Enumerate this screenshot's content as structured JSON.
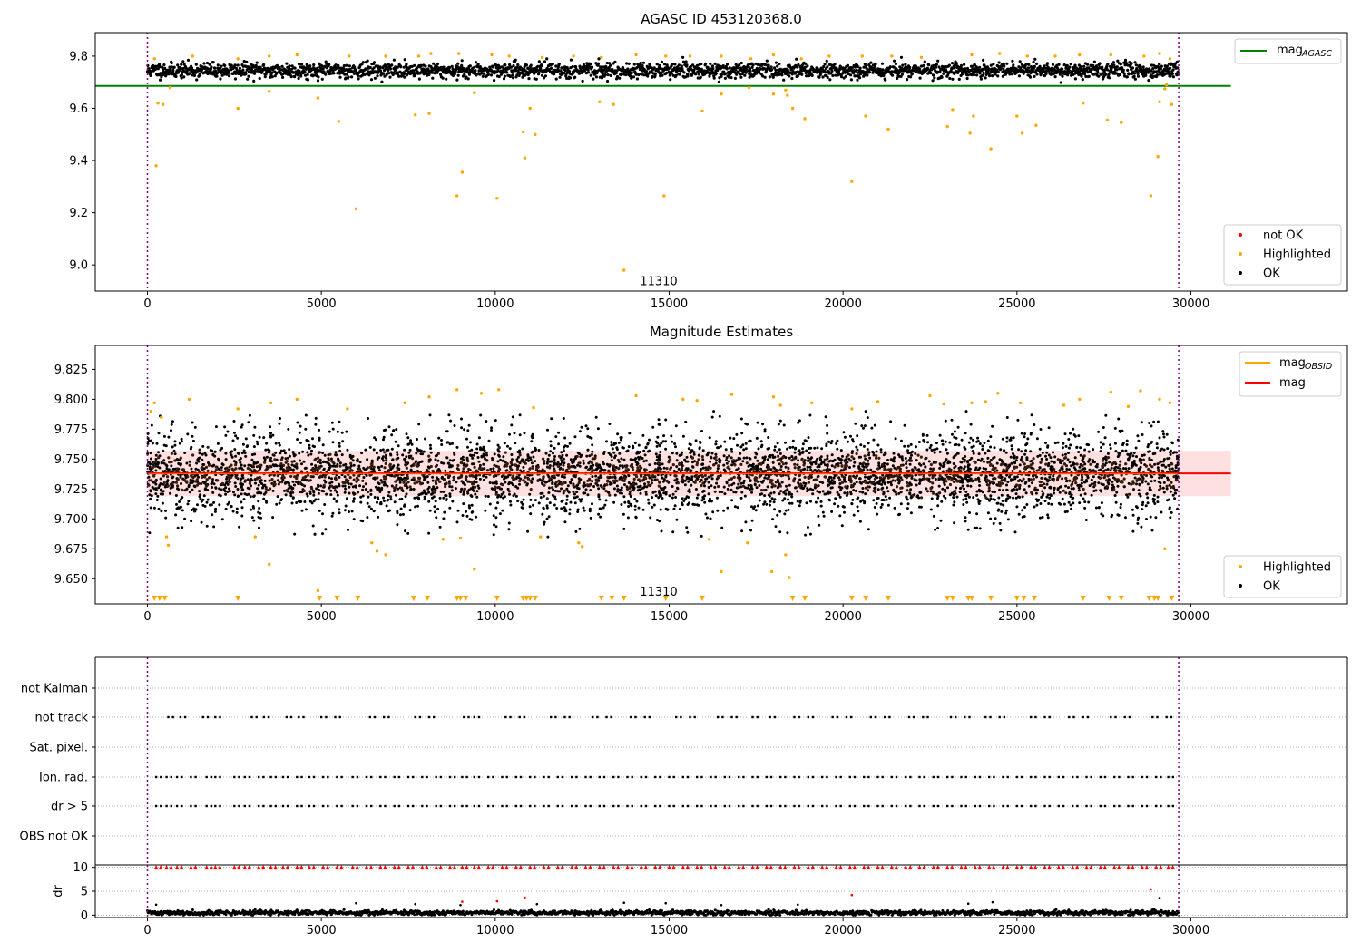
{
  "figure": {
    "title_top": "AGASC ID 453120368.0",
    "title_mid": "Magnitude Estimates"
  },
  "chart_data": [
    {
      "type": "scatter",
      "title": "AGASC ID 453120368.0",
      "xlim": [
        -1500,
        34500
      ],
      "ylim": [
        8.9,
        9.89
      ],
      "xticks": [
        0,
        5000,
        10000,
        15000,
        20000,
        25000,
        30000
      ],
      "yticks": [
        9.0,
        9.2,
        9.4,
        9.6,
        9.8
      ],
      "grid": false,
      "legend_upper": {
        "placement": "top-right",
        "entries": [
          {
            "label": "mag",
            "sub": "AGASC",
            "color": "#008000",
            "kind": "line"
          }
        ]
      },
      "legend_lower": {
        "placement": "bottom-right",
        "entries": [
          {
            "label": "not OK",
            "color": "#ff0000",
            "kind": "marker"
          },
          {
            "label": "Highlighted",
            "color": "#ffa500",
            "kind": "marker"
          },
          {
            "label": "OK",
            "color": "#000000",
            "kind": "marker"
          }
        ]
      },
      "annotation": {
        "text": "11310",
        "x": 14700,
        "y": 8.94
      },
      "vlines": [
        0,
        29650
      ],
      "mag_agasc": 9.686,
      "ok_band": {
        "x_range": [
          0,
          29650
        ],
        "center": 9.745,
        "spread": 0.032
      },
      "highlighted": [
        [
          250,
          9.38
        ],
        [
          300,
          9.62
        ],
        [
          450,
          9.615
        ],
        [
          650,
          9.68
        ],
        [
          2600,
          9.6
        ],
        [
          3500,
          9.665
        ],
        [
          4900,
          9.64
        ],
        [
          5500,
          9.55
        ],
        [
          6000,
          9.215
        ],
        [
          7700,
          9.575
        ],
        [
          8100,
          9.58
        ],
        [
          8900,
          9.265
        ],
        [
          9050,
          9.355
        ],
        [
          9400,
          9.66
        ],
        [
          10050,
          9.255
        ],
        [
          10800,
          9.51
        ],
        [
          10850,
          9.41
        ],
        [
          11000,
          9.6
        ],
        [
          11150,
          9.5
        ],
        [
          13000,
          9.625
        ],
        [
          13400,
          9.615
        ],
        [
          13700,
          8.98
        ],
        [
          14850,
          9.265
        ],
        [
          15950,
          9.59
        ],
        [
          16500,
          9.655
        ],
        [
          17300,
          9.68
        ],
        [
          18000,
          9.655
        ],
        [
          18350,
          9.67
        ],
        [
          18400,
          9.65
        ],
        [
          18550,
          9.6
        ],
        [
          18900,
          9.56
        ],
        [
          20250,
          9.32
        ],
        [
          20650,
          9.57
        ],
        [
          21300,
          9.52
        ],
        [
          23000,
          9.53
        ],
        [
          23150,
          9.595
        ],
        [
          23650,
          9.505
        ],
        [
          23750,
          9.57
        ],
        [
          24250,
          9.445
        ],
        [
          25000,
          9.57
        ],
        [
          25150,
          9.505
        ],
        [
          25550,
          9.535
        ],
        [
          26900,
          9.62
        ],
        [
          27600,
          9.555
        ],
        [
          28000,
          9.545
        ],
        [
          28850,
          9.265
        ],
        [
          29050,
          9.415
        ],
        [
          29100,
          9.625
        ],
        [
          29250,
          9.675
        ],
        [
          29300,
          9.69
        ],
        [
          29450,
          9.615
        ],
        [
          200,
          9.79
        ],
        [
          1300,
          9.8
        ],
        [
          2600,
          9.79
        ],
        [
          3500,
          9.8
        ],
        [
          4300,
          9.805
        ],
        [
          5800,
          9.8
        ],
        [
          6850,
          9.8
        ],
        [
          7800,
          9.8
        ],
        [
          8150,
          9.81
        ],
        [
          8950,
          9.81
        ],
        [
          9900,
          9.805
        ],
        [
          10400,
          9.8
        ],
        [
          11350,
          9.795
        ],
        [
          12250,
          9.8
        ],
        [
          13050,
          9.795
        ],
        [
          14050,
          9.805
        ],
        [
          14900,
          9.8
        ],
        [
          15600,
          9.8
        ],
        [
          16500,
          9.8
        ],
        [
          17350,
          9.79
        ],
        [
          18000,
          9.805
        ],
        [
          18800,
          9.79
        ],
        [
          19600,
          9.8
        ],
        [
          20550,
          9.8
        ],
        [
          21400,
          9.8
        ],
        [
          22250,
          9.795
        ],
        [
          23700,
          9.805
        ],
        [
          24500,
          9.81
        ],
        [
          25300,
          9.8
        ],
        [
          26100,
          9.8
        ],
        [
          26800,
          9.805
        ],
        [
          27700,
          9.805
        ],
        [
          28650,
          9.8
        ],
        [
          29100,
          9.81
        ],
        [
          29400,
          9.79
        ]
      ]
    },
    {
      "type": "scatter",
      "title": "Magnitude Estimates",
      "xlim": [
        -1500,
        34500
      ],
      "ylim": [
        9.629,
        9.845
      ],
      "xticks": [
        0,
        5000,
        10000,
        15000,
        20000,
        25000,
        30000
      ],
      "yticks": [
        9.65,
        9.675,
        9.7,
        9.725,
        9.75,
        9.775,
        9.8,
        9.825
      ],
      "grid": false,
      "legend_upper": {
        "placement": "top-right",
        "entries": [
          {
            "label": "mag",
            "sub": "OBSID",
            "color": "#ffa500",
            "kind": "line"
          },
          {
            "label": "mag",
            "sub": "",
            "color": "#ff0000",
            "kind": "line"
          }
        ]
      },
      "legend_lower": {
        "placement": "bottom-right",
        "entries": [
          {
            "label": "Highlighted",
            "color": "#ffa500",
            "kind": "marker"
          },
          {
            "label": "OK",
            "color": "#000000",
            "kind": "marker"
          }
        ]
      },
      "annotation": {
        "text": "11310",
        "x": 14700,
        "y": 9.637
      },
      "vlines": [
        0,
        29650
      ],
      "mag_line": 9.738,
      "mag_band": [
        9.719,
        9.757
      ],
      "mag_obsid": {
        "x_range": [
          0,
          29650
        ],
        "value": 9.738
      },
      "ok_band": {
        "x_range": [
          0,
          29650
        ],
        "center": 9.737,
        "spread": 0.048
      },
      "highlighted": [
        [
          100,
          9.79
        ],
        [
          200,
          9.797
        ],
        [
          400,
          9.785
        ],
        [
          550,
          9.685
        ],
        [
          600,
          9.678
        ],
        [
          1200,
          9.8
        ],
        [
          2600,
          9.792
        ],
        [
          3100,
          9.685
        ],
        [
          3500,
          9.662
        ],
        [
          3550,
          9.797
        ],
        [
          4300,
          9.8
        ],
        [
          4900,
          9.64
        ],
        [
          5750,
          9.792
        ],
        [
          6450,
          9.68
        ],
        [
          6600,
          9.673
        ],
        [
          6850,
          9.67
        ],
        [
          7400,
          9.797
        ],
        [
          8100,
          9.802
        ],
        [
          8500,
          9.683
        ],
        [
          8900,
          9.808
        ],
        [
          9000,
          9.684
        ],
        [
          9400,
          9.658
        ],
        [
          9600,
          9.805
        ],
        [
          10100,
          9.808
        ],
        [
          11100,
          9.793
        ],
        [
          11300,
          9.685
        ],
        [
          12400,
          9.68
        ],
        [
          12500,
          9.677
        ],
        [
          14050,
          9.803
        ],
        [
          15400,
          9.8
        ],
        [
          15800,
          9.799
        ],
        [
          16150,
          9.683
        ],
        [
          16500,
          9.656
        ],
        [
          16800,
          9.804
        ],
        [
          17250,
          9.68
        ],
        [
          17950,
          9.656
        ],
        [
          18000,
          9.802
        ],
        [
          18200,
          9.795
        ],
        [
          18350,
          9.67
        ],
        [
          18450,
          9.651
        ],
        [
          19100,
          9.797
        ],
        [
          20250,
          9.792
        ],
        [
          21000,
          9.798
        ],
        [
          22500,
          9.803
        ],
        [
          22900,
          9.796
        ],
        [
          23700,
          9.797
        ],
        [
          24100,
          9.798
        ],
        [
          24450,
          9.805
        ],
        [
          25100,
          9.797
        ],
        [
          26350,
          9.795
        ],
        [
          26800,
          9.8
        ],
        [
          27700,
          9.806
        ],
        [
          28200,
          9.794
        ],
        [
          28550,
          9.807
        ],
        [
          29100,
          9.8
        ],
        [
          29250,
          9.675
        ],
        [
          29400,
          9.797
        ]
      ],
      "highlighted_below_range_x": [
        200,
        350,
        500,
        2600,
        4950,
        5450,
        6050,
        7650,
        8050,
        8900,
        9000,
        9150,
        10050,
        10800,
        10900,
        11000,
        11150,
        13050,
        13350,
        13700,
        14900,
        15950,
        18550,
        18900,
        20250,
        20650,
        21300,
        23000,
        23150,
        23600,
        23700,
        24250,
        25000,
        25200,
        25500,
        26900,
        27650,
        28000,
        28800,
        28950,
        29050,
        29450
      ]
    },
    {
      "type": "scatter",
      "title": "",
      "xlim": [
        -1500,
        34500
      ],
      "xticks": [
        0,
        5000,
        10000,
        15000,
        20000,
        25000,
        30000
      ],
      "grid": true,
      "flag_categories": [
        "not Kalman",
        "not track",
        "Sat. pixel.",
        "Ion. rad.",
        "dr > 5",
        "OBS not OK"
      ],
      "flags": {
        "not Kalman": [],
        "not track": [
          600,
          950,
          1600,
          1950,
          3000,
          3350,
          4000,
          4350,
          5000,
          5400,
          6400,
          6800,
          7700,
          8100,
          9100,
          9400,
          10300,
          10700,
          11600,
          12000,
          12800,
          13200,
          13900,
          14300,
          15200,
          15600,
          16400,
          16800,
          17400,
          17900,
          18600,
          19000,
          19700,
          20100,
          20800,
          21200,
          21900,
          22300,
          23100,
          23500,
          24100,
          24500,
          25400,
          25800,
          26500,
          26900,
          27700,
          28100,
          28900,
          29300
        ],
        "Sat. pixel.": [],
        "Ion. rad.": [
          250,
          550,
          850,
          1250,
          1700,
          1950,
          2500,
          2800,
          3200,
          3550,
          3900,
          4300,
          4650,
          5050,
          5450,
          5900,
          6300,
          6700,
          7100,
          7500,
          7900,
          8300,
          8700,
          9050,
          9400,
          9800,
          10200,
          10600,
          11000,
          11400,
          11800,
          12200,
          12600,
          13000,
          13400,
          13800,
          14200,
          14600,
          15000,
          15400,
          15800,
          16200,
          16600,
          17000,
          17400,
          17800,
          18200,
          18600,
          19000,
          19400,
          19800,
          20200,
          20600,
          21000,
          21400,
          21800,
          22200,
          22600,
          23000,
          23400,
          23800,
          24200,
          24600,
          25000,
          25400,
          25800,
          26200,
          26600,
          27000,
          27400,
          27800,
          28200,
          28600,
          29000,
          29350
        ],
        "dr > 5": [
          250,
          550,
          850,
          1250,
          1700,
          1950,
          2500,
          2800,
          3200,
          3550,
          3900,
          4300,
          4650,
          5050,
          5450,
          5900,
          6300,
          6700,
          7100,
          7500,
          7900,
          8300,
          8700,
          9050,
          9400,
          9800,
          10200,
          10600,
          11000,
          11400,
          11800,
          12200,
          12600,
          13000,
          13400,
          13800,
          14200,
          14600,
          15000,
          15400,
          15800,
          16200,
          16600,
          17000,
          17400,
          17800,
          18200,
          18600,
          19000,
          19400,
          19800,
          20200,
          20600,
          21000,
          21400,
          21800,
          22200,
          22600,
          23000,
          23400,
          23800,
          24200,
          24600,
          25000,
          25400,
          25800,
          26200,
          26600,
          27000,
          27400,
          27800,
          28200,
          28600,
          29000,
          29350
        ],
        "OBS not OK": []
      },
      "vlines": [
        0,
        29650
      ]
    },
    {
      "type": "scatter",
      "ylabel": "dr",
      "xlim": [
        -1500,
        34500
      ],
      "ylim": [
        -0.5,
        10.5
      ],
      "yticks": [
        0,
        5,
        10
      ],
      "xticks": [
        0,
        5000,
        10000,
        15000,
        20000,
        25000,
        30000
      ],
      "grid": true,
      "vlines": [
        0,
        29650
      ],
      "ok_band": {
        "x_range": [
          0,
          29650
        ],
        "center": 0.5,
        "spread": 0.5
      },
      "clipped_marker_y": 10,
      "clipped_x": [
        250,
        550,
        850,
        1250,
        1700,
        1950,
        2500,
        2800,
        3200,
        3550,
        3900,
        4300,
        4650,
        5050,
        5450,
        5900,
        6300,
        6700,
        7100,
        7500,
        7900,
        8300,
        8700,
        9050,
        9400,
        9800,
        10200,
        10600,
        11000,
        11400,
        11800,
        12200,
        12600,
        13000,
        13400,
        13800,
        14200,
        14600,
        15000,
        15400,
        15800,
        16200,
        16600,
        17000,
        17400,
        17800,
        18200,
        18600,
        19000,
        19400,
        19800,
        20200,
        20600,
        21000,
        21400,
        21800,
        22200,
        22600,
        23000,
        23400,
        23800,
        24200,
        24600,
        25000,
        25400,
        25800,
        26200,
        26600,
        27000,
        27400,
        27800,
        28200,
        28600,
        29000,
        29350
      ],
      "not_ok": [
        [
          9050,
          2.8
        ],
        [
          10050,
          2.9
        ],
        [
          10850,
          3.7
        ],
        [
          20250,
          4.2
        ],
        [
          28850,
          5.4
        ]
      ],
      "ok_outliers": [
        [
          250,
          2.2
        ],
        [
          6000,
          2.5
        ],
        [
          7700,
          2.3
        ],
        [
          9000,
          2.1
        ],
        [
          11200,
          2.3
        ],
        [
          13700,
          2.6
        ],
        [
          14900,
          2.5
        ],
        [
          16500,
          2.1
        ],
        [
          18700,
          2.2
        ],
        [
          23600,
          2.4
        ],
        [
          24300,
          2.7
        ],
        [
          29100,
          3.6
        ]
      ]
    }
  ]
}
